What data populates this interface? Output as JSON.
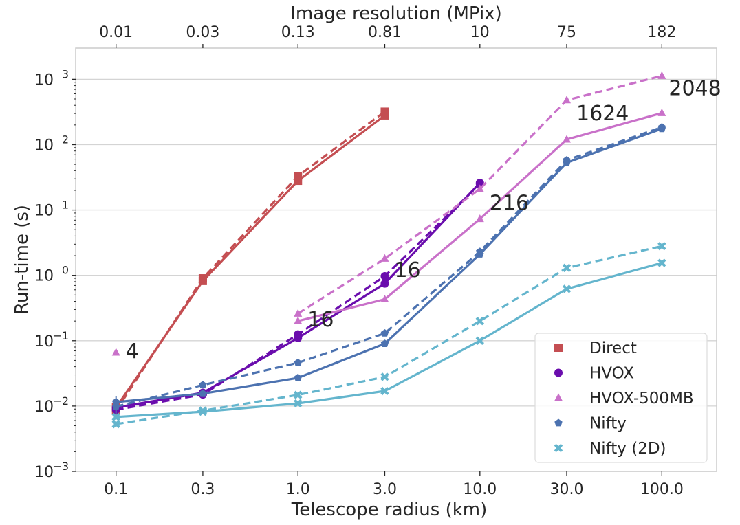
{
  "chart_data": {
    "type": "line",
    "xlabel": "Telescope radius (km)",
    "ylabel": "Run-time (s)",
    "top_xlabel": "Image resolution (MPix)",
    "x_scale": "log",
    "y_scale": "log",
    "xlim": [
      0.06,
      200
    ],
    "ylim": [
      0.001,
      3000
    ],
    "x_ticks": [
      0.1,
      0.3,
      1.0,
      3.0,
      10.0,
      30.0,
      100.0
    ],
    "x_tick_labels": [
      "0.1",
      "0.3",
      "1.0",
      "3.0",
      "10.0",
      "30.0",
      "100.0"
    ],
    "top_tick_labels": [
      "0.01",
      "0.03",
      "0.13",
      "0.81",
      "10",
      "75",
      "182"
    ],
    "y_ticks": [
      0.001,
      0.01,
      0.1,
      1,
      10,
      100,
      1000
    ],
    "y_tick_labels": [
      {
        "base": "10",
        "exp": "−3"
      },
      {
        "base": "10",
        "exp": "−2"
      },
      {
        "base": "10",
        "exp": "−1"
      },
      {
        "base": "10",
        "exp": "0"
      },
      {
        "base": "10",
        "exp": "1"
      },
      {
        "base": "10",
        "exp": "2"
      },
      {
        "base": "10",
        "exp": "3"
      }
    ],
    "grid": true,
    "legend_position": "bottom-right",
    "series": [
      {
        "name": "Direct",
        "color": "#c44e52",
        "marker": "square",
        "solid": [
          [
            0.1,
            0.0095
          ],
          [
            0.3,
            0.82
          ],
          [
            1.0,
            28
          ],
          [
            3.0,
            280
          ]
        ],
        "dashed": [
          [
            0.1,
            0.0085
          ],
          [
            0.3,
            0.9
          ],
          [
            1.0,
            33
          ],
          [
            3.0,
            320
          ]
        ]
      },
      {
        "name": "HVOX",
        "color": "#6a0dad",
        "marker": "circle",
        "solid": [
          [
            0.1,
            0.0095
          ],
          [
            0.3,
            0.016
          ],
          [
            1.0,
            0.11
          ],
          [
            3.0,
            0.75
          ],
          [
            10.0,
            26
          ]
        ],
        "dashed": [
          [
            0.1,
            0.0088
          ],
          [
            0.3,
            0.015
          ],
          [
            1.0,
            0.125
          ],
          [
            3.0,
            0.97
          ],
          [
            10.0,
            25
          ]
        ]
      },
      {
        "name": "HVOX-500MB",
        "color": "#c971c9",
        "marker": "triangle",
        "solid": [
          [
            1.0,
            0.2
          ],
          [
            3.0,
            0.43
          ],
          [
            10.0,
            7.3
          ],
          [
            30.0,
            120
          ],
          [
            100.0,
            305
          ]
        ],
        "dashed": [
          [
            1.0,
            0.26
          ],
          [
            3.0,
            1.8
          ],
          [
            10.0,
            21
          ],
          [
            30.0,
            480
          ],
          [
            100.0,
            1130
          ]
        ],
        "isolated": [
          [
            0.1,
            0.066
          ]
        ]
      },
      {
        "name": "Nifty",
        "color": "#4c72b0",
        "marker": "pentagon",
        "solid": [
          [
            0.1,
            0.0115
          ],
          [
            0.3,
            0.0155
          ],
          [
            1.0,
            0.027
          ],
          [
            3.0,
            0.09
          ],
          [
            10.0,
            2.1
          ],
          [
            30.0,
            53
          ],
          [
            100.0,
            175
          ]
        ],
        "dashed": [
          [
            0.1,
            0.0098
          ],
          [
            0.3,
            0.021
          ],
          [
            1.0,
            0.046
          ],
          [
            3.0,
            0.13
          ],
          [
            10.0,
            2.3
          ],
          [
            30.0,
            58
          ],
          [
            100.0,
            185
          ]
        ]
      },
      {
        "name": "Nifty (2D)",
        "color": "#64b5cd",
        "marker": "x",
        "solid": [
          [
            0.1,
            0.0068
          ],
          [
            0.3,
            0.0082
          ],
          [
            1.0,
            0.011
          ],
          [
            3.0,
            0.017
          ],
          [
            10.0,
            0.1
          ],
          [
            30.0,
            0.62
          ],
          [
            100.0,
            1.55
          ]
        ],
        "dashed": [
          [
            0.1,
            0.0053
          ],
          [
            0.3,
            0.0085
          ],
          [
            1.0,
            0.0148
          ],
          [
            3.0,
            0.028
          ],
          [
            10.0,
            0.2
          ],
          [
            30.0,
            1.3
          ],
          [
            100.0,
            2.8
          ]
        ]
      }
    ],
    "annotations": [
      {
        "text": "4",
        "x": 0.1,
        "y": 0.066
      },
      {
        "text": "16",
        "x": 1.0,
        "y": 0.2
      },
      {
        "text": "16",
        "x": 3.0,
        "y": 1.2
      },
      {
        "text": "216",
        "x": 10.0,
        "y": 14
      },
      {
        "text": "1624",
        "x": 30.0,
        "y": 330
      },
      {
        "text": "2048",
        "x": 100.0,
        "y": 800
      }
    ]
  }
}
